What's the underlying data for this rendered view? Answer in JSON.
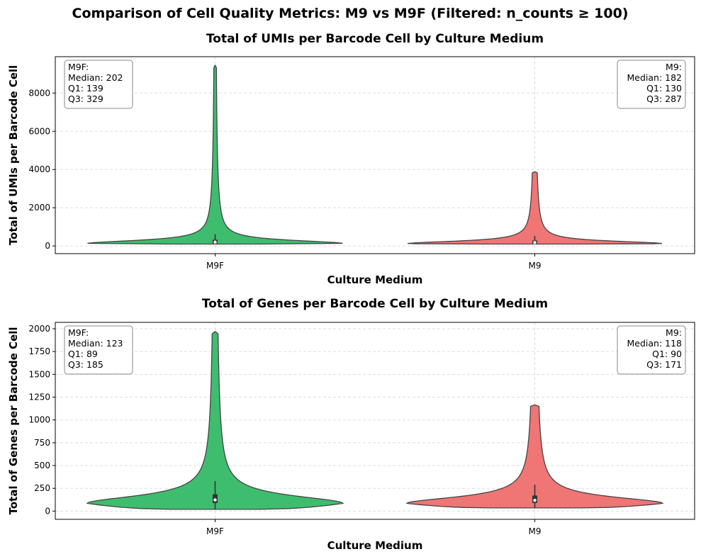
{
  "suptitle": "Comparison of Cell Quality Metrics: M9 vs M9F (Filtered: n_counts ≥ 100)",
  "colors": {
    "M9F": "#3ebd6f",
    "M9": "#f07575",
    "outline": "#444444",
    "grid": "#dddddd"
  },
  "chart_data": [
    {
      "type": "violin",
      "title": "Total of UMIs per Barcode Cell by Culture Medium",
      "xlabel": "Culture Medium",
      "ylabel": "Total of UMIs per Barcode Cell",
      "categories": [
        "M9F",
        "M9"
      ],
      "ylim": [
        -400,
        9900
      ],
      "yticks": [
        0,
        2000,
        4000,
        6000,
        8000
      ],
      "grid": true,
      "series": [
        {
          "name": "M9F",
          "min": 100,
          "q1": 139,
          "median": 202,
          "q3": 329,
          "whisker_high": 620,
          "max": 9450,
          "mode": 130,
          "annotation": [
            "M9F:",
            "Median: 202",
            "Q1: 139",
            "Q3: 329"
          ],
          "annotation_align": "left"
        },
        {
          "name": "M9",
          "min": 100,
          "q1": 130,
          "median": 182,
          "q3": 287,
          "whisker_high": 520,
          "max": 3880,
          "mode": 120,
          "annotation": [
            "M9:",
            "Median: 182",
            "Q1: 130",
            "Q3: 287"
          ],
          "annotation_align": "right"
        }
      ]
    },
    {
      "type": "violin",
      "title": "Total of Genes per Barcode Cell by Culture Medium",
      "xlabel": "Culture Medium",
      "ylabel": "Total of Genes per Barcode Cell",
      "categories": [
        "M9F",
        "M9"
      ],
      "ylim": [
        -90,
        2070
      ],
      "yticks": [
        0,
        250,
        500,
        750,
        1000,
        1250,
        1500,
        1750,
        2000
      ],
      "grid": true,
      "series": [
        {
          "name": "M9F",
          "min": 20,
          "q1": 89,
          "median": 123,
          "q3": 185,
          "whisker_high": 330,
          "max": 1970,
          "mode": 85,
          "annotation": [
            "M9F:",
            "Median: 123",
            "Q1: 89",
            "Q3: 185"
          ],
          "annotation_align": "left"
        },
        {
          "name": "M9",
          "min": 35,
          "q1": 90,
          "median": 118,
          "q3": 171,
          "whisker_high": 290,
          "max": 1165,
          "mode": 85,
          "annotation": [
            "M9:",
            "Median: 118",
            "Q1: 90",
            "Q3: 171"
          ],
          "annotation_align": "right"
        }
      ]
    }
  ]
}
